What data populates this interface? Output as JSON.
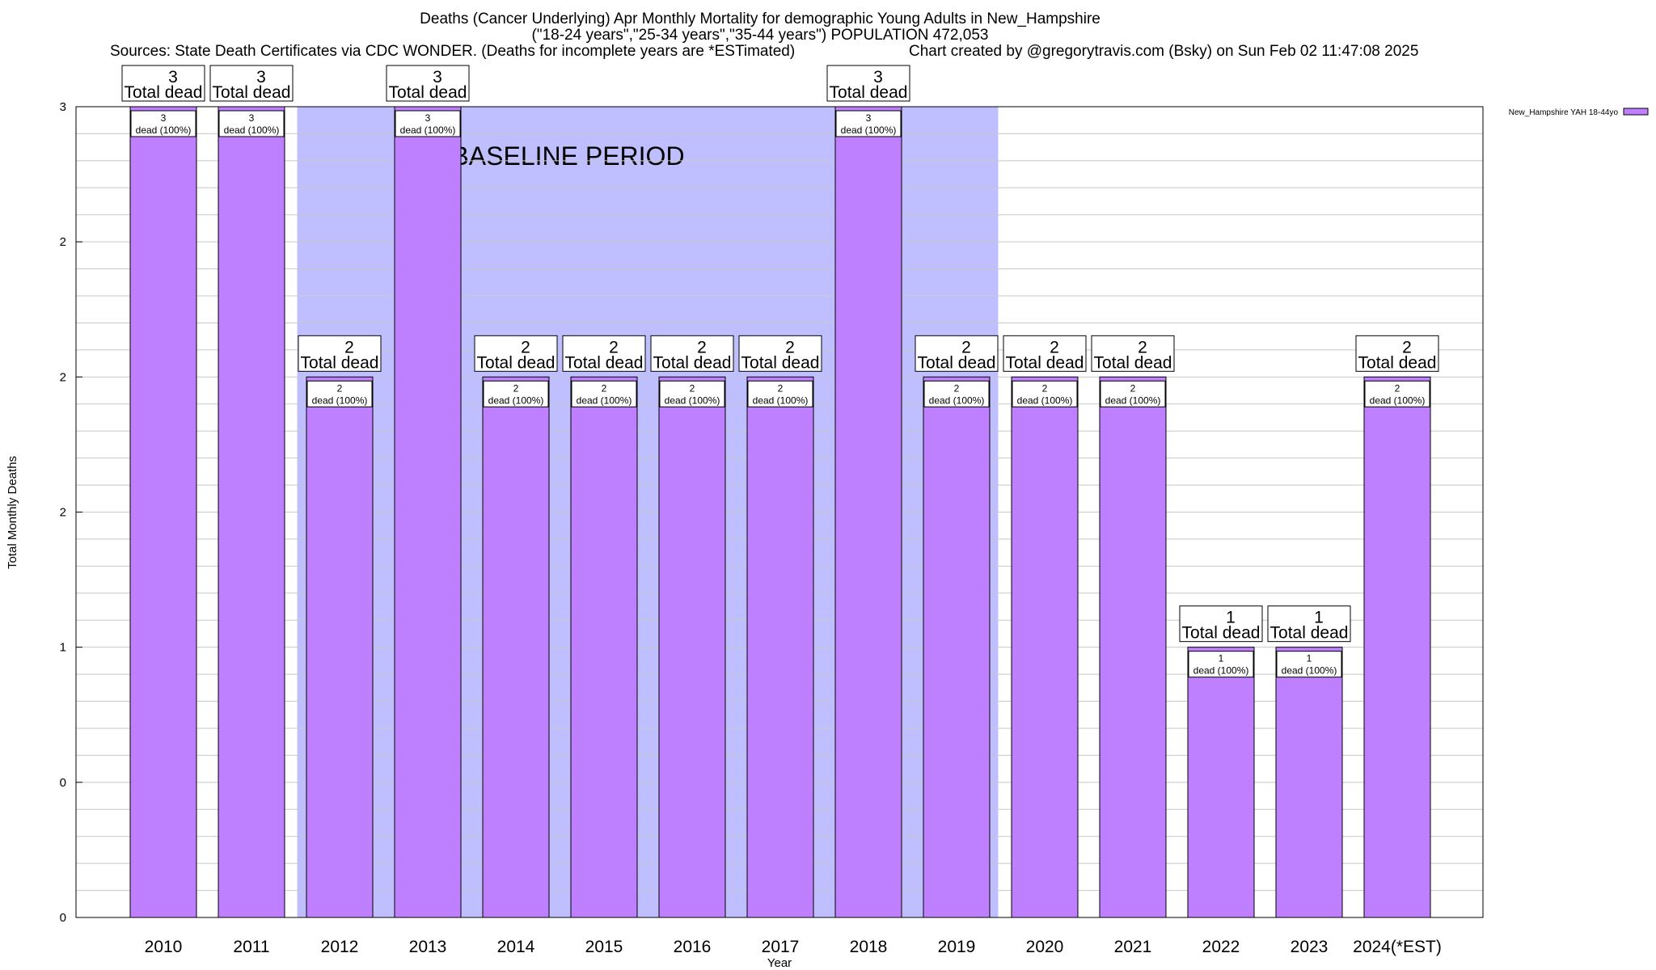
{
  "header": {
    "title_line1": "Deaths (Cancer Underlying) Apr Monthly Mortality for demographic Young Adults in New_Hampshire",
    "title_line2": "(\"18-24 years\",\"25-34 years\",\"35-44 years\") POPULATION 472,053",
    "sources": "Sources: State Death Certificates via CDC WONDER. (Deaths for incomplete years are *ESTimated)",
    "credit": "Chart created by @gregorytravis.com (Bsky) on Sun Feb 02 11:47:08 2025"
  },
  "chart_data": {
    "type": "bar",
    "title": "Deaths (Cancer Underlying) Apr Monthly Mortality for demographic Young Adults in New_Hampshire",
    "xlabel": "Year",
    "ylabel": "Total Monthly Deaths",
    "categories": [
      "2010",
      "2011",
      "2012",
      "2013",
      "2014",
      "2015",
      "2016",
      "2017",
      "2018",
      "2019",
      "2020",
      "2021",
      "2022",
      "2023",
      "2024(*EST)"
    ],
    "series": [
      {
        "name": "New_Hampshire YAH 18-44yo",
        "values": [
          3,
          3,
          2,
          3,
          2,
          2,
          2,
          2,
          3,
          2,
          2,
          2,
          1,
          1,
          2
        ],
        "color": "#bf80ff"
      }
    ],
    "ylim": [
      0,
      3
    ],
    "y_tick_values": [
      0,
      0.5,
      1,
      1.5,
      2,
      2.5,
      3
    ],
    "y_tick_labels": [
      "0",
      "0",
      "1",
      "2",
      "2",
      "2",
      "3"
    ],
    "total_labels": [
      "3\nTotal dead",
      "3\nTotal dead",
      "2\nTotal dead",
      "3\nTotal dead",
      "2\nTotal dead",
      "2\nTotal dead",
      "2\nTotal dead",
      "2\nTotal dead",
      "3\nTotal dead",
      "2\nTotal dead",
      "2\nTotal dead",
      "2\nTotal dead",
      "1\nTotal dead",
      "1\nTotal dead",
      "2\nTotal dead"
    ],
    "segment_labels": [
      "3\ndead (100%)",
      "3\ndead (100%)",
      "2\ndead (100%)",
      "3\ndead (100%)",
      "2\ndead (100%)",
      "2\ndead (100%)",
      "2\ndead (100%)",
      "2\ndead (100%)",
      "3\ndead (100%)",
      "2\ndead (100%)",
      "2\ndead (100%)",
      "2\ndead (100%)",
      "1\ndead (100%)",
      "1\ndead (100%)",
      "2\ndead (100%)"
    ],
    "baseline": {
      "label": "BASELINE PERIOD",
      "start": "2012",
      "end": "2019",
      "color": "#bfbfff"
    },
    "legend_position": "top-right",
    "grid": true
  }
}
